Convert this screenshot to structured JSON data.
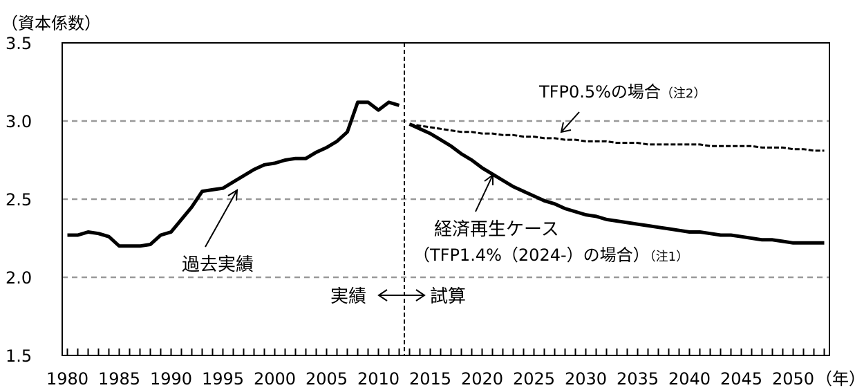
{
  "chart_data": {
    "type": "line",
    "ylabel": "（資本係数）",
    "xunit": "（年）",
    "ylim": [
      1.5,
      3.5
    ],
    "yticks": [
      1.5,
      2.0,
      2.5,
      3.0,
      3.5
    ],
    "ytick_labels": [
      "1.5",
      "2.0",
      "2.5",
      "3.0",
      "3.5"
    ],
    "xlim": [
      1979.5,
      2053.5
    ],
    "xticks": [
      1980,
      1985,
      1990,
      1995,
      2000,
      2005,
      2010,
      2015,
      2020,
      2025,
      2030,
      2035,
      2040,
      2045,
      2050
    ],
    "xtick_labels": [
      "1980",
      "1985",
      "1990",
      "1995",
      "2000",
      "2005",
      "2010",
      "2015",
      "2020",
      "2025",
      "2030",
      "2035",
      "2040",
      "2045",
      "2050"
    ],
    "grid": "horizontal dashed",
    "divider_year": 2012.5,
    "divider_left_label": "実績",
    "divider_right_label": "試算",
    "series": [
      {
        "name": "過去実績",
        "style": "solid",
        "x": [
          1980,
          1981,
          1982,
          1983,
          1984,
          1985,
          1986,
          1987,
          1988,
          1989,
          1990,
          1991,
          1992,
          1993,
          1994,
          1995,
          1996,
          1997,
          1998,
          1999,
          2000,
          2001,
          2002,
          2003,
          2004,
          2005,
          2006,
          2007,
          2008,
          2009,
          2010,
          2011,
          2012
        ],
        "values": [
          2.27,
          2.27,
          2.29,
          2.28,
          2.26,
          2.2,
          2.2,
          2.2,
          2.21,
          2.27,
          2.29,
          2.37,
          2.45,
          2.55,
          2.56,
          2.57,
          2.61,
          2.65,
          2.69,
          2.72,
          2.73,
          2.75,
          2.76,
          2.76,
          2.8,
          2.83,
          2.87,
          2.93,
          3.12,
          3.12,
          3.07,
          3.12,
          3.1
        ]
      },
      {
        "name": "経済再生ケース",
        "name_line2": "（TFP1.4%（2024-）の場合）",
        "note": "（注1）",
        "style": "solid",
        "x": [
          2013,
          2014,
          2015,
          2016,
          2017,
          2018,
          2019,
          2020,
          2021,
          2022,
          2023,
          2024,
          2025,
          2026,
          2027,
          2028,
          2029,
          2030,
          2031,
          2032,
          2033,
          2034,
          2035,
          2036,
          2037,
          2038,
          2039,
          2040,
          2041,
          2042,
          2043,
          2044,
          2045,
          2046,
          2047,
          2048,
          2049,
          2050,
          2051,
          2052,
          2053
        ],
        "values": [
          2.98,
          2.95,
          2.92,
          2.88,
          2.84,
          2.79,
          2.75,
          2.7,
          2.66,
          2.62,
          2.58,
          2.55,
          2.52,
          2.49,
          2.47,
          2.44,
          2.42,
          2.4,
          2.39,
          2.37,
          2.36,
          2.35,
          2.34,
          2.33,
          2.32,
          2.31,
          2.3,
          2.29,
          2.29,
          2.28,
          2.27,
          2.27,
          2.26,
          2.25,
          2.24,
          2.24,
          2.23,
          2.22,
          2.22,
          2.22,
          2.22
        ]
      },
      {
        "name": "TFP0.5%の場合",
        "note": "（注2）",
        "style": "dashed",
        "x": [
          2013,
          2014,
          2015,
          2016,
          2017,
          2018,
          2019,
          2020,
          2021,
          2022,
          2023,
          2024,
          2025,
          2026,
          2027,
          2028,
          2029,
          2030,
          2031,
          2032,
          2033,
          2034,
          2035,
          2036,
          2037,
          2038,
          2039,
          2040,
          2041,
          2042,
          2043,
          2044,
          2045,
          2046,
          2047,
          2048,
          2049,
          2050,
          2051,
          2052,
          2053
        ],
        "values": [
          2.98,
          2.97,
          2.96,
          2.95,
          2.94,
          2.93,
          2.93,
          2.92,
          2.92,
          2.91,
          2.91,
          2.9,
          2.9,
          2.89,
          2.89,
          2.88,
          2.88,
          2.87,
          2.87,
          2.87,
          2.86,
          2.86,
          2.86,
          2.85,
          2.85,
          2.85,
          2.85,
          2.85,
          2.85,
          2.84,
          2.84,
          2.84,
          2.84,
          2.84,
          2.83,
          2.83,
          2.83,
          2.82,
          2.82,
          2.81,
          2.81
        ]
      }
    ]
  }
}
